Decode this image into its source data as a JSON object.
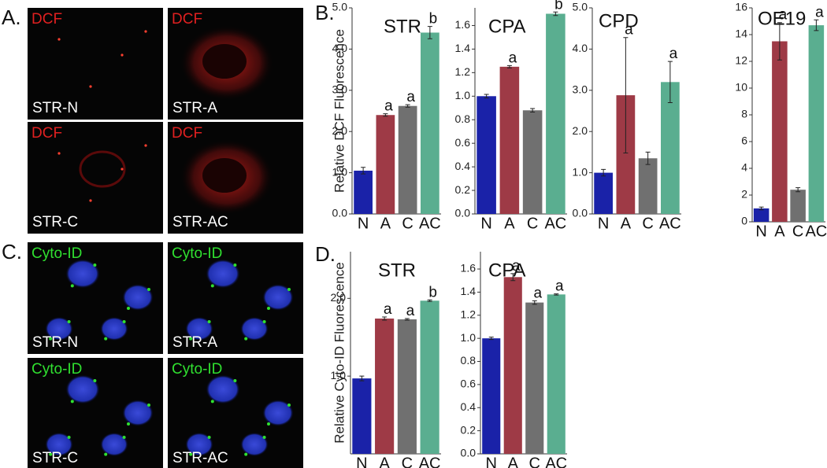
{
  "figure": {
    "panels": [
      {
        "letter": "A.",
        "images": [
          {
            "stain": "DCF",
            "name": "STR-N"
          },
          {
            "stain": "DCF",
            "name": "STR-A"
          },
          {
            "stain": "DCF",
            "name": "STR-C"
          },
          {
            "stain": "DCF",
            "name": "STR-AC"
          }
        ]
      },
      {
        "letter": "B."
      },
      {
        "letter": "C.",
        "images": [
          {
            "stain": "Cyto-ID",
            "name": "STR-N"
          },
          {
            "stain": "Cyto-ID",
            "name": "STR-A"
          },
          {
            "stain": "Cyto-ID",
            "name": "STR-C"
          },
          {
            "stain": "Cyto-ID",
            "name": "STR-AC"
          }
        ]
      },
      {
        "letter": "D."
      }
    ]
  },
  "chart_data": [
    {
      "type": "bar",
      "title": "STR",
      "ylabel": "Relative DCF Fluorescence",
      "categories": [
        "N",
        "A",
        "C",
        "AC"
      ],
      "values": [
        1.05,
        2.4,
        2.62,
        4.4
      ],
      "errors": [
        0.08,
        0.03,
        0.03,
        0.15
      ],
      "annotations": [
        null,
        "a",
        "a",
        "b"
      ],
      "colors": [
        "#1a22a8",
        "#9e3a46",
        "#707070",
        "#5aae90"
      ],
      "ylim": [
        0,
        5.0
      ],
      "yticks": [
        {
          "value": 0,
          "label": "0.0"
        },
        {
          "value": 1,
          "label": "1.0"
        },
        {
          "value": 2,
          "label": "2.0"
        },
        {
          "value": 3,
          "label": "3.0"
        },
        {
          "value": 4,
          "label": "4.0"
        },
        {
          "value": 5,
          "label": "5.0"
        }
      ]
    },
    {
      "type": "bar",
      "title": "CPA",
      "categories": [
        "N",
        "A",
        "C",
        "AC"
      ],
      "values": [
        1.0,
        1.25,
        0.88,
        1.7
      ],
      "errors": [
        0.015,
        0.01,
        0.015,
        0.015
      ],
      "annotations": [
        null,
        "a",
        null,
        "b"
      ],
      "colors": [
        "#1a22a8",
        "#9e3a46",
        "#707070",
        "#5aae90"
      ],
      "ylim": [
        0,
        1.75
      ],
      "yticks": [
        {
          "value": 0,
          "label": "0.0"
        },
        {
          "value": 0.2,
          "label": "0.2"
        },
        0.4,
        0.6,
        0.8,
        {
          "value": 1,
          "label": "1.0"
        },
        1.2,
        1.4,
        1.6
      ]
    },
    {
      "type": "bar",
      "title": "CPD",
      "categories": [
        "N",
        "A",
        "C",
        "AC"
      ],
      "values": [
        1.0,
        2.88,
        1.35,
        3.2
      ],
      "errors": [
        0.08,
        1.4,
        0.15,
        0.5
      ],
      "annotations": [
        null,
        "a",
        null,
        "a"
      ],
      "colors": [
        "#1a22a8",
        "#9e3a46",
        "#707070",
        "#5aae90"
      ],
      "ylim": [
        0,
        5.0
      ],
      "yticks": [
        {
          "value": 0,
          "label": "0.0"
        },
        {
          "value": 1,
          "label": "1.0"
        },
        {
          "value": 2,
          "label": "2.0"
        },
        {
          "value": 3,
          "label": "3.0"
        },
        {
          "value": 4,
          "label": "4.0"
        },
        {
          "value": 5,
          "label": "5.0"
        }
      ]
    },
    {
      "type": "bar",
      "title": "OE19",
      "categories": [
        "N",
        "A",
        "C",
        "AC"
      ],
      "values": [
        1.0,
        13.5,
        2.4,
        14.7
      ],
      "errors": [
        0.1,
        1.4,
        0.15,
        0.4
      ],
      "annotations": [
        null,
        "a",
        null,
        "a"
      ],
      "colors": [
        "#1a22a8",
        "#9e3a46",
        "#707070",
        "#5aae90"
      ],
      "ylim": [
        0,
        16
      ],
      "yticks": [
        0,
        2,
        4,
        6,
        8,
        10,
        12,
        14,
        16
      ]
    },
    {
      "type": "bar",
      "title": "STR",
      "ylabel": "Relative Cyto-ID Fluorescence",
      "categories": [
        "N",
        "A",
        "C",
        "AC"
      ],
      "values": [
        0.97,
        1.74,
        1.73,
        1.97
      ],
      "errors": [
        0.03,
        0.02,
        0.01,
        0.01
      ],
      "annotations": [
        null,
        "a",
        "a",
        "b"
      ],
      "colors": [
        "#1a22a8",
        "#9e3a46",
        "#707070",
        "#5aae90"
      ],
      "ylim": [
        0,
        2.6
      ],
      "yticks": [
        {
          "value": 1,
          "label": "1.0"
        },
        {
          "value": 2,
          "label": "2.0"
        }
      ]
    },
    {
      "type": "bar",
      "title": "CPA",
      "categories": [
        "N",
        "A",
        "C",
        "AC"
      ],
      "values": [
        1.0,
        1.53,
        1.31,
        1.38
      ],
      "errors": [
        0.01,
        0.03,
        0.015,
        0.005
      ],
      "annotations": [
        null,
        "a",
        "a",
        "a"
      ],
      "colors": [
        "#1a22a8",
        "#9e3a46",
        "#707070",
        "#5aae90"
      ],
      "ylim": [
        0,
        1.75
      ],
      "yticks": [
        {
          "value": 0,
          "label": "0.0"
        },
        {
          "value": 0.2,
          "label": "0.2"
        },
        0.4,
        0.6,
        0.8,
        {
          "value": 1,
          "label": "1.0"
        },
        1.2,
        1.4,
        1.6
      ]
    }
  ]
}
